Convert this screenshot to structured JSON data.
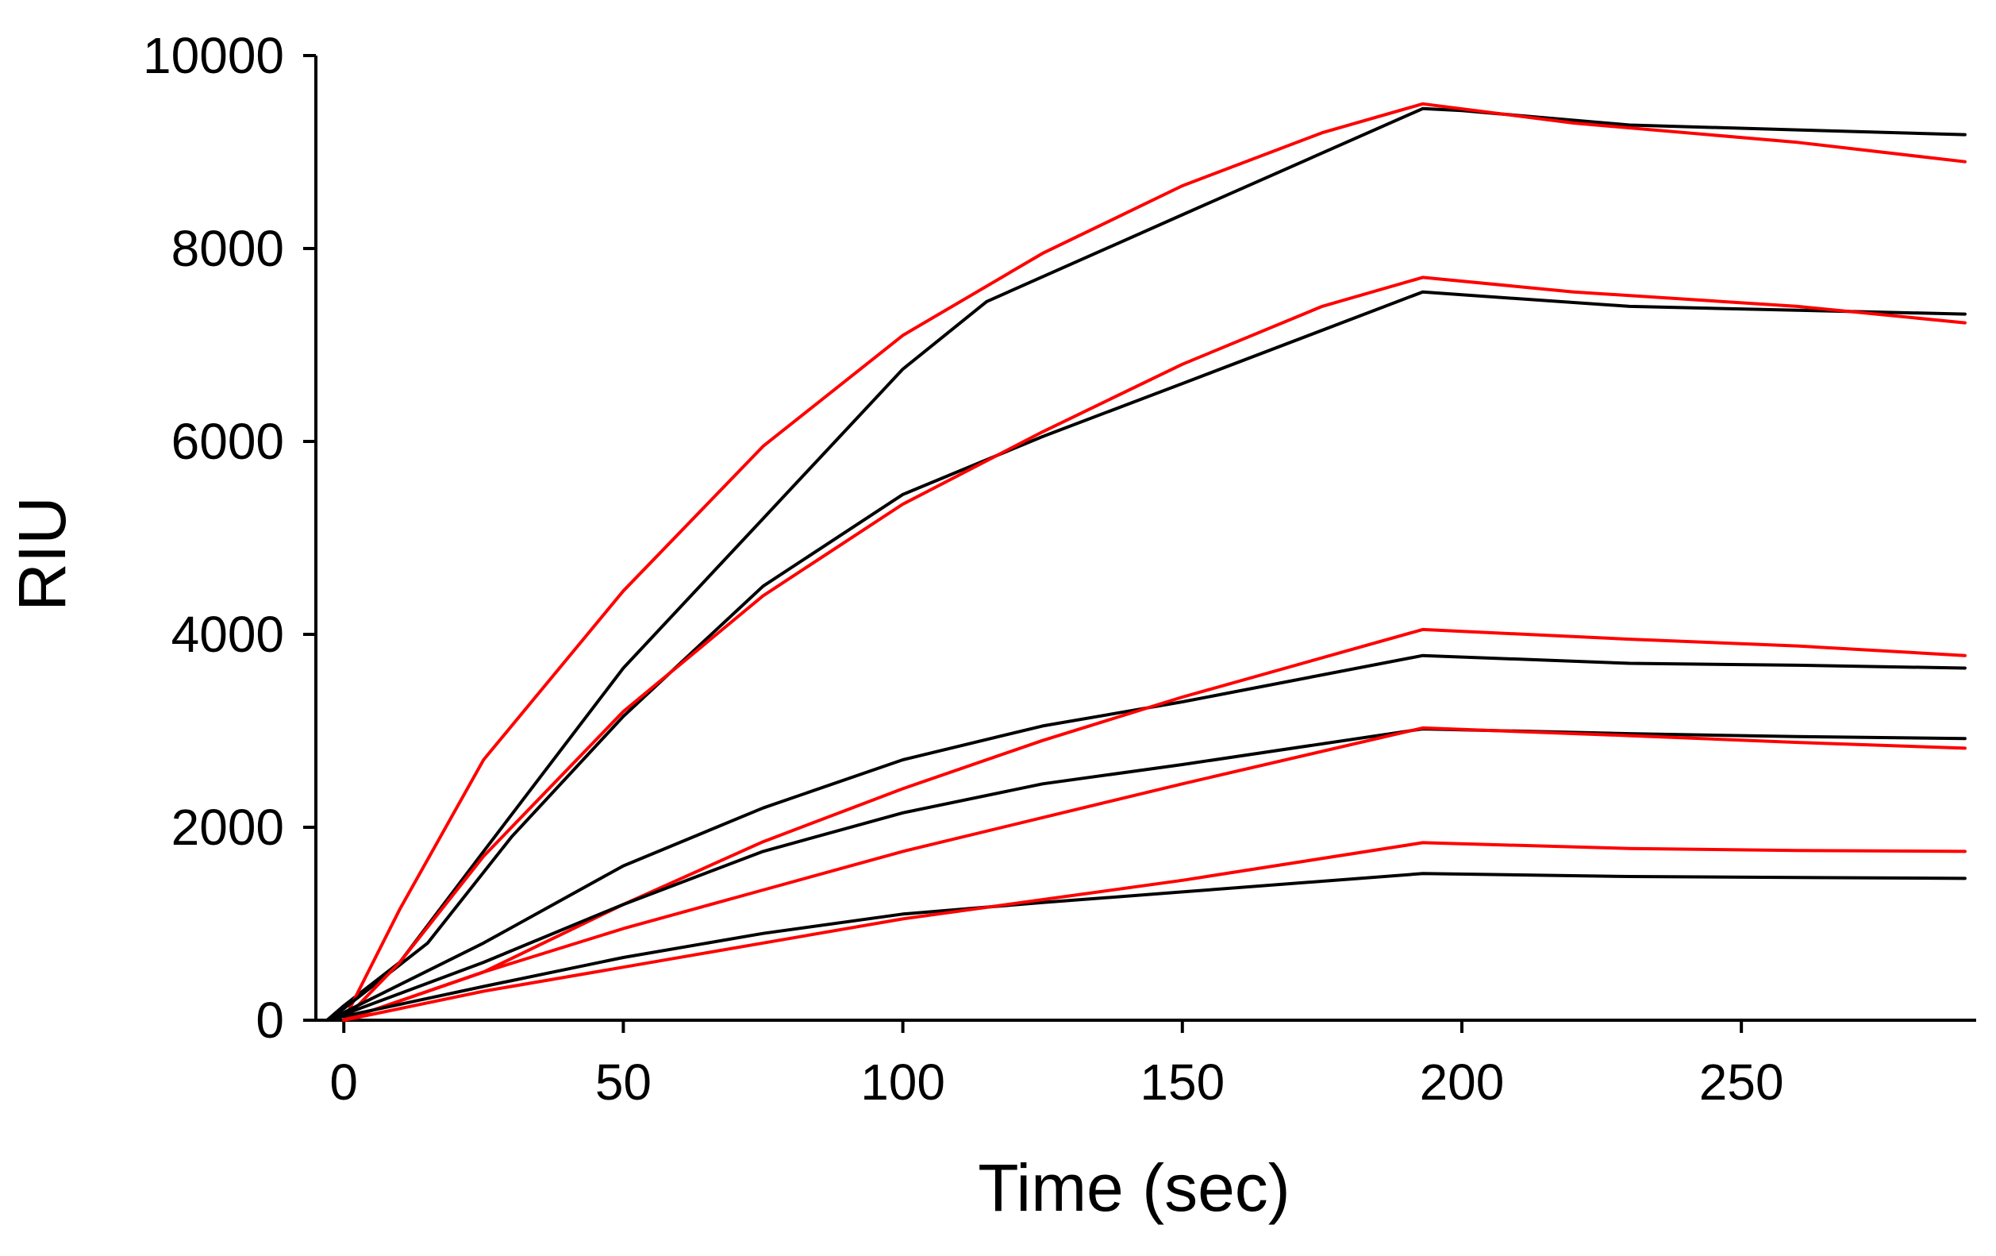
{
  "chart_data": {
    "type": "line",
    "title": "",
    "xlabel": "Time (sec)",
    "ylabel": "RIU",
    "xlim": [
      -5,
      292
    ],
    "ylim": [
      0,
      10000
    ],
    "x_ticks": [
      0,
      50,
      100,
      150,
      200,
      250
    ],
    "y_ticks": [
      0,
      2000,
      4000,
      6000,
      8000,
      10000
    ],
    "grid": false,
    "legend": "none",
    "colors": {
      "measured": "#000000",
      "fit": "#ff0000"
    },
    "series": [
      {
        "group": "measured",
        "points": [
          [
            -3,
            0
          ],
          [
            0,
            150
          ],
          [
            10,
            600
          ],
          [
            25,
            1750
          ],
          [
            50,
            3650
          ],
          [
            75,
            5200
          ],
          [
            100,
            6750
          ],
          [
            115,
            7450
          ],
          [
            150,
            8350
          ],
          [
            193,
            9450
          ],
          [
            200,
            9430
          ],
          [
            230,
            9280
          ],
          [
            260,
            9230
          ],
          [
            290,
            9180
          ]
        ]
      },
      {
        "group": "fit",
        "points": [
          [
            0,
            0
          ],
          [
            10,
            1150
          ],
          [
            25,
            2700
          ],
          [
            50,
            4450
          ],
          [
            75,
            5950
          ],
          [
            100,
            7100
          ],
          [
            125,
            7950
          ],
          [
            150,
            8650
          ],
          [
            175,
            9200
          ],
          [
            193,
            9500
          ],
          [
            220,
            9300
          ],
          [
            260,
            9100
          ],
          [
            290,
            8900
          ]
        ]
      },
      {
        "group": "measured",
        "points": [
          [
            -3,
            0
          ],
          [
            0,
            120
          ],
          [
            15,
            800
          ],
          [
            30,
            1900
          ],
          [
            50,
            3150
          ],
          [
            75,
            4500
          ],
          [
            100,
            5450
          ],
          [
            125,
            6050
          ],
          [
            150,
            6600
          ],
          [
            193,
            7550
          ],
          [
            200,
            7520
          ],
          [
            230,
            7400
          ],
          [
            260,
            7360
          ],
          [
            290,
            7320
          ]
        ]
      },
      {
        "group": "fit",
        "points": [
          [
            0,
            0
          ],
          [
            10,
            600
          ],
          [
            25,
            1700
          ],
          [
            50,
            3200
          ],
          [
            75,
            4400
          ],
          [
            100,
            5350
          ],
          [
            125,
            6100
          ],
          [
            150,
            6800
          ],
          [
            175,
            7400
          ],
          [
            193,
            7700
          ],
          [
            220,
            7550
          ],
          [
            260,
            7400
          ],
          [
            290,
            7230
          ]
        ]
      },
      {
        "group": "measured",
        "points": [
          [
            -3,
            0
          ],
          [
            0,
            80
          ],
          [
            25,
            800
          ],
          [
            50,
            1600
          ],
          [
            75,
            2200
          ],
          [
            100,
            2700
          ],
          [
            125,
            3050
          ],
          [
            150,
            3300
          ],
          [
            193,
            3780
          ],
          [
            230,
            3700
          ],
          [
            260,
            3680
          ],
          [
            290,
            3650
          ]
        ]
      },
      {
        "group": "fit",
        "points": [
          [
            0,
            0
          ],
          [
            25,
            500
          ],
          [
            50,
            1200
          ],
          [
            75,
            1850
          ],
          [
            100,
            2400
          ],
          [
            125,
            2900
          ],
          [
            150,
            3350
          ],
          [
            193,
            4050
          ],
          [
            230,
            3950
          ],
          [
            260,
            3880
          ],
          [
            290,
            3780
          ]
        ]
      },
      {
        "group": "measured",
        "points": [
          [
            -3,
            0
          ],
          [
            0,
            60
          ],
          [
            25,
            600
          ],
          [
            50,
            1200
          ],
          [
            75,
            1750
          ],
          [
            100,
            2150
          ],
          [
            125,
            2450
          ],
          [
            150,
            2650
          ],
          [
            193,
            3020
          ],
          [
            230,
            2970
          ],
          [
            260,
            2940
          ],
          [
            290,
            2920
          ]
        ]
      },
      {
        "group": "fit",
        "points": [
          [
            0,
            0
          ],
          [
            25,
            500
          ],
          [
            50,
            950
          ],
          [
            75,
            1350
          ],
          [
            100,
            1750
          ],
          [
            125,
            2100
          ],
          [
            150,
            2450
          ],
          [
            193,
            3030
          ],
          [
            230,
            2950
          ],
          [
            260,
            2880
          ],
          [
            290,
            2820
          ]
        ]
      },
      {
        "group": "measured",
        "points": [
          [
            -3,
            0
          ],
          [
            0,
            40
          ],
          [
            25,
            350
          ],
          [
            50,
            650
          ],
          [
            75,
            900
          ],
          [
            100,
            1100
          ],
          [
            125,
            1220
          ],
          [
            150,
            1330
          ],
          [
            193,
            1520
          ],
          [
            230,
            1490
          ],
          [
            260,
            1480
          ],
          [
            290,
            1470
          ]
        ]
      },
      {
        "group": "fit",
        "points": [
          [
            0,
            0
          ],
          [
            25,
            300
          ],
          [
            50,
            550
          ],
          [
            75,
            800
          ],
          [
            100,
            1050
          ],
          [
            125,
            1250
          ],
          [
            150,
            1450
          ],
          [
            193,
            1840
          ],
          [
            230,
            1780
          ],
          [
            260,
            1760
          ],
          [
            290,
            1750
          ]
        ]
      }
    ]
  }
}
